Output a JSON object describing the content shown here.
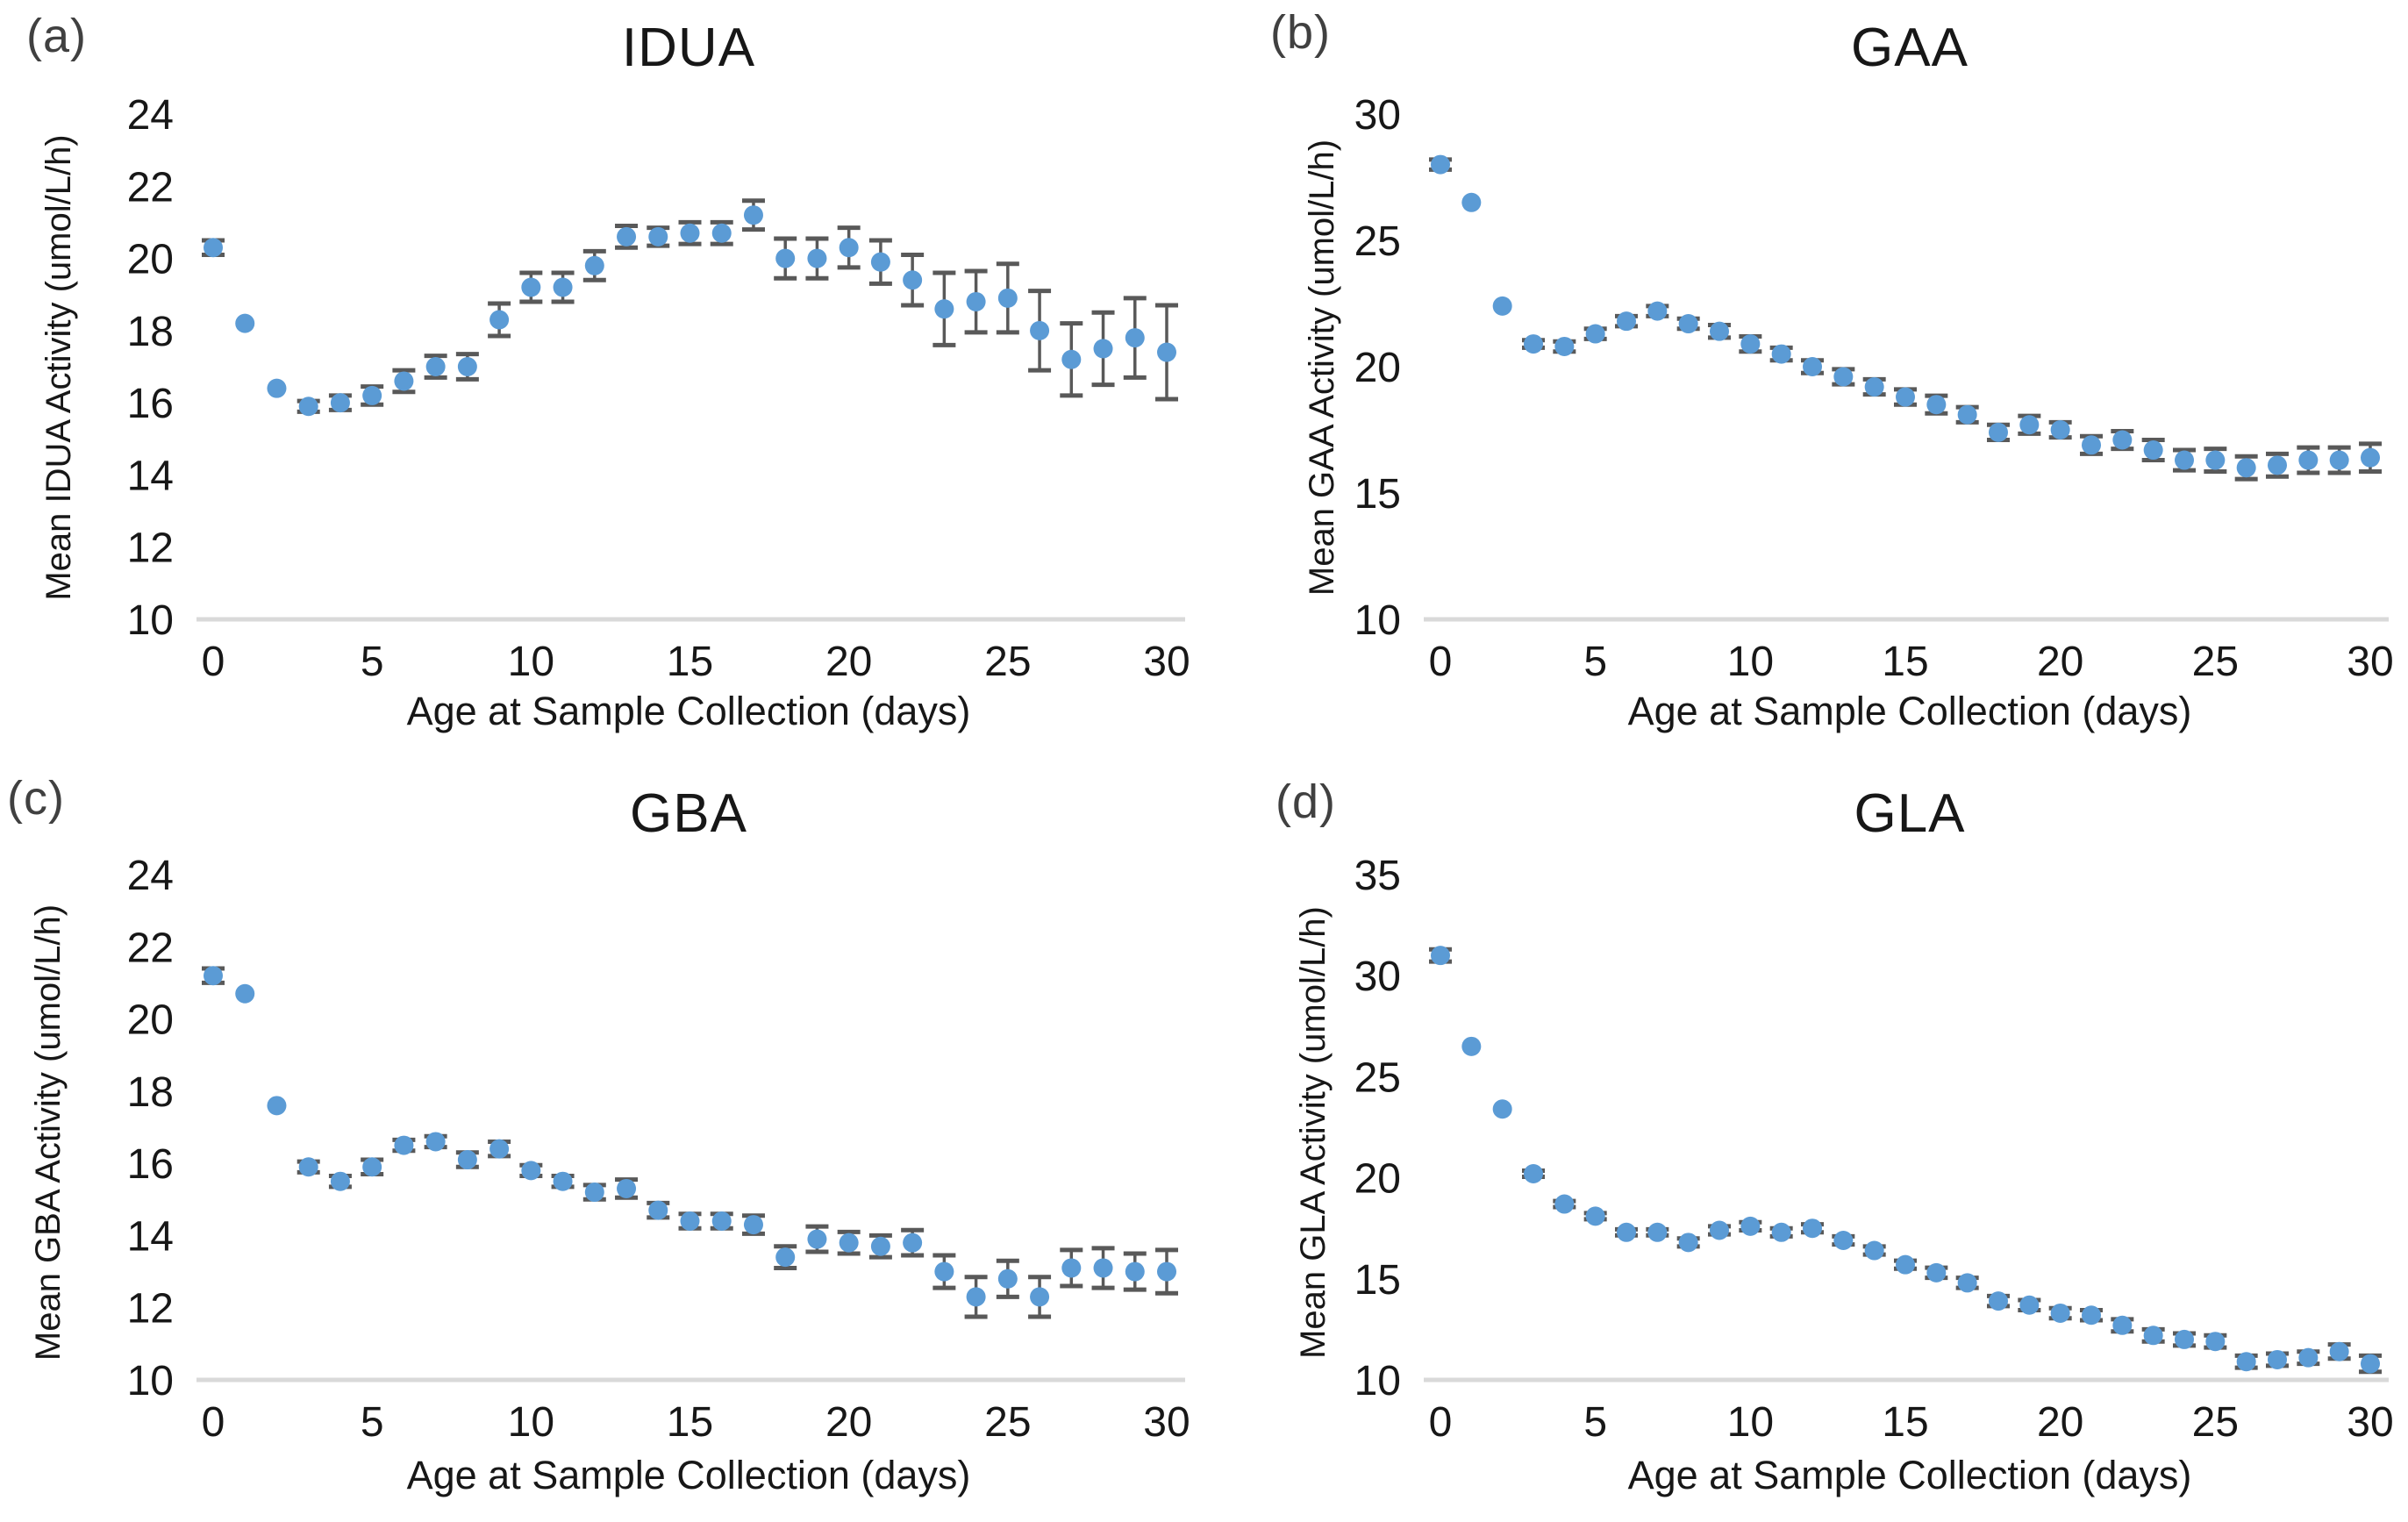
{
  "figure": {
    "background_color": "#ffffff",
    "point_color": "#5b9bd5",
    "error_bar_color": "#595959",
    "baseline_color": "#d9d9d9",
    "tick_text_color": "#171717",
    "panel_letter_color": "#404040",
    "x_axis_label": "Age at Sample Collection (days)",
    "x_tick_labels": [
      0,
      5,
      10,
      15,
      20,
      25,
      30
    ]
  },
  "chart_data": [
    {
      "type": "scatter",
      "panel_letter": "(a)",
      "title": "IDUA",
      "ylabel": "Mean IDUA Activity (umol/L/h)",
      "xlabel": "Age at Sample Collection (days)",
      "xlim": [
        0,
        30
      ],
      "ylim": [
        10,
        24
      ],
      "yticks": [
        10,
        12,
        14,
        16,
        18,
        20,
        22,
        24
      ],
      "xticks": [
        0,
        5,
        10,
        15,
        20,
        25,
        30
      ],
      "grid": "baseline-only",
      "legend_position": "none",
      "x_days": [
        0,
        1,
        2,
        3,
        4,
        5,
        6,
        7,
        8,
        9,
        10,
        11,
        12,
        13,
        14,
        15,
        16,
        17,
        18,
        19,
        20,
        21,
        22,
        23,
        24,
        25,
        26,
        27,
        28,
        29,
        30
      ],
      "values": [
        20.3,
        18.2,
        16.4,
        15.9,
        16.0,
        16.2,
        16.6,
        17.0,
        17.0,
        18.3,
        19.2,
        19.2,
        19.8,
        20.6,
        20.6,
        20.7,
        20.7,
        21.2,
        20.0,
        20.0,
        20.3,
        19.9,
        19.4,
        18.6,
        18.8,
        18.9,
        18.0,
        17.2,
        17.5,
        17.8,
        17.4
      ],
      "errors": [
        0.2,
        0,
        0,
        0.15,
        0.2,
        0.25,
        0.3,
        0.3,
        0.35,
        0.45,
        0.4,
        0.4,
        0.4,
        0.3,
        0.25,
        0.3,
        0.3,
        0.4,
        0.55,
        0.55,
        0.55,
        0.6,
        0.7,
        1.0,
        0.85,
        0.95,
        1.1,
        1.0,
        1.0,
        1.1,
        1.3
      ]
    },
    {
      "type": "scatter",
      "panel_letter": "(b)",
      "title": "GAA",
      "ylabel": "Mean GAA Activity (umol/L/h)",
      "xlabel": "Age at Sample Collection (days)",
      "xlim": [
        0,
        30
      ],
      "ylim": [
        10,
        30
      ],
      "yticks": [
        10,
        15,
        20,
        25,
        30
      ],
      "xticks": [
        0,
        5,
        10,
        15,
        20,
        25,
        30
      ],
      "grid": "baseline-only",
      "legend_position": "none",
      "x_days": [
        0,
        1,
        2,
        3,
        4,
        5,
        6,
        7,
        8,
        9,
        10,
        11,
        12,
        13,
        14,
        15,
        16,
        17,
        18,
        19,
        20,
        21,
        22,
        23,
        24,
        25,
        26,
        27,
        28,
        29,
        30
      ],
      "values": [
        28.0,
        26.5,
        22.4,
        20.9,
        20.8,
        21.3,
        21.8,
        22.2,
        21.7,
        21.4,
        20.9,
        20.5,
        20.0,
        19.6,
        19.2,
        18.8,
        18.5,
        18.1,
        17.4,
        17.7,
        17.5,
        16.9,
        17.1,
        16.7,
        16.3,
        16.3,
        16.0,
        16.1,
        16.3,
        16.3,
        16.4
      ],
      "errors": [
        0.2,
        0,
        0,
        0.15,
        0.2,
        0.2,
        0.2,
        0.2,
        0.2,
        0.25,
        0.3,
        0.25,
        0.25,
        0.3,
        0.3,
        0.3,
        0.35,
        0.3,
        0.3,
        0.35,
        0.3,
        0.35,
        0.35,
        0.4,
        0.4,
        0.45,
        0.45,
        0.45,
        0.5,
        0.5,
        0.55
      ]
    },
    {
      "type": "scatter",
      "panel_letter": "(c)",
      "title": "GBA",
      "ylabel": "Mean GBA Activity (umol/L/h)",
      "xlabel": "Age at Sample Collection (days)",
      "xlim": [
        0,
        30
      ],
      "ylim": [
        10,
        24
      ],
      "yticks": [
        10,
        12,
        14,
        16,
        18,
        20,
        22,
        24
      ],
      "xticks": [
        0,
        5,
        10,
        15,
        20,
        25,
        30
      ],
      "grid": "baseline-only",
      "legend_position": "none",
      "x_days": [
        0,
        1,
        2,
        3,
        4,
        5,
        6,
        7,
        8,
        9,
        10,
        11,
        12,
        13,
        14,
        15,
        16,
        17,
        18,
        19,
        20,
        21,
        22,
        23,
        24,
        25,
        26,
        27,
        28,
        29,
        30
      ],
      "values": [
        21.2,
        20.7,
        17.6,
        15.9,
        15.5,
        15.9,
        16.5,
        16.6,
        16.1,
        16.4,
        15.8,
        15.5,
        15.2,
        15.3,
        14.7,
        14.4,
        14.4,
        14.3,
        13.4,
        13.9,
        13.8,
        13.7,
        13.8,
        13.0,
        12.3,
        12.8,
        12.3,
        13.1,
        13.1,
        13.0,
        13.0
      ],
      "errors": [
        0.2,
        0,
        0,
        0.15,
        0.15,
        0.2,
        0.15,
        0.15,
        0.2,
        0.2,
        0.15,
        0.15,
        0.2,
        0.25,
        0.2,
        0.2,
        0.2,
        0.25,
        0.3,
        0.35,
        0.3,
        0.3,
        0.35,
        0.45,
        0.55,
        0.5,
        0.55,
        0.5,
        0.55,
        0.5,
        0.6
      ]
    },
    {
      "type": "scatter",
      "panel_letter": "(d)",
      "title": "GLA",
      "ylabel": "Mean GLA Activity (umol/L/h)",
      "xlabel": "Age at Sample Collection (days)",
      "xlim": [
        0,
        30
      ],
      "ylim": [
        10,
        35
      ],
      "yticks": [
        10,
        15,
        20,
        25,
        30,
        35
      ],
      "xticks": [
        0,
        5,
        10,
        15,
        20,
        25,
        30
      ],
      "grid": "baseline-only",
      "legend_position": "none",
      "x_days": [
        0,
        1,
        2,
        3,
        4,
        5,
        6,
        7,
        8,
        9,
        10,
        11,
        12,
        13,
        14,
        15,
        16,
        17,
        18,
        19,
        20,
        21,
        22,
        23,
        24,
        25,
        26,
        27,
        28,
        29,
        30
      ],
      "values": [
        31.0,
        26.5,
        23.4,
        20.2,
        18.7,
        18.1,
        17.3,
        17.3,
        16.8,
        17.4,
        17.6,
        17.3,
        17.5,
        16.9,
        16.4,
        15.7,
        15.3,
        14.8,
        13.9,
        13.7,
        13.3,
        13.2,
        12.7,
        12.2,
        12.0,
        11.9,
        10.9,
        11.0,
        11.1,
        11.4,
        10.8
      ],
      "errors": [
        0.3,
        0,
        0,
        0.15,
        0.15,
        0.15,
        0.15,
        0.15,
        0.2,
        0.2,
        0.2,
        0.2,
        0.2,
        0.2,
        0.2,
        0.2,
        0.25,
        0.25,
        0.25,
        0.25,
        0.25,
        0.25,
        0.3,
        0.3,
        0.3,
        0.3,
        0.3,
        0.3,
        0.3,
        0.35,
        0.4
      ]
    }
  ]
}
